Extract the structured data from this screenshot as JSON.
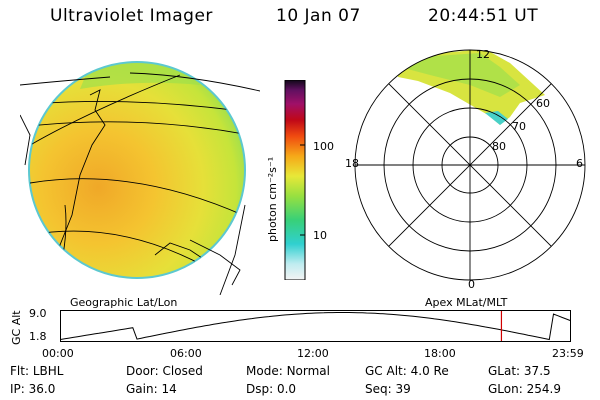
{
  "header": {
    "instrument": "Ultraviolet Imager",
    "date": "10 Jan 07",
    "time": "20:44:51 UT"
  },
  "colorbar": {
    "unit_label": "photon cm⁻²s⁻¹",
    "ticks": [
      "100",
      "10"
    ]
  },
  "panels": {
    "left_label": "Geographic Lat/Lon",
    "right_label": "Apex MLat/MLT"
  },
  "polar": {
    "mlt_labels": {
      "top": "12",
      "left": "18",
      "right": "6",
      "bottom": "0"
    },
    "lat_labels": [
      "60",
      "70",
      "80"
    ]
  },
  "altitude_strip": {
    "axis_title": "GC Alt",
    "ymax": "9.0",
    "ymin": "1.8",
    "x_ticks": [
      "00:00",
      "06:00",
      "12:00",
      "18:00",
      "23:59"
    ],
    "current_time_marker_hours": 20.75
  },
  "info": {
    "row1": [
      {
        "label": "Flt:",
        "value": "LBHL"
      },
      {
        "label": "Door:",
        "value": "Closed"
      },
      {
        "label": "Mode:",
        "value": "Normal"
      },
      {
        "label": "GC Alt:",
        "value": "4.0 Re"
      },
      {
        "label": "GLat:",
        "value": "37.5"
      }
    ],
    "row2": [
      {
        "label": "IP:",
        "value": "36.0"
      },
      {
        "label": "Gain:",
        "value": "14"
      },
      {
        "label": "Dsp:",
        "value": "0.0"
      },
      {
        "label": "Seq:",
        "value": "39"
      },
      {
        "label": "GLon:",
        "value": "254.9"
      }
    ]
  }
}
